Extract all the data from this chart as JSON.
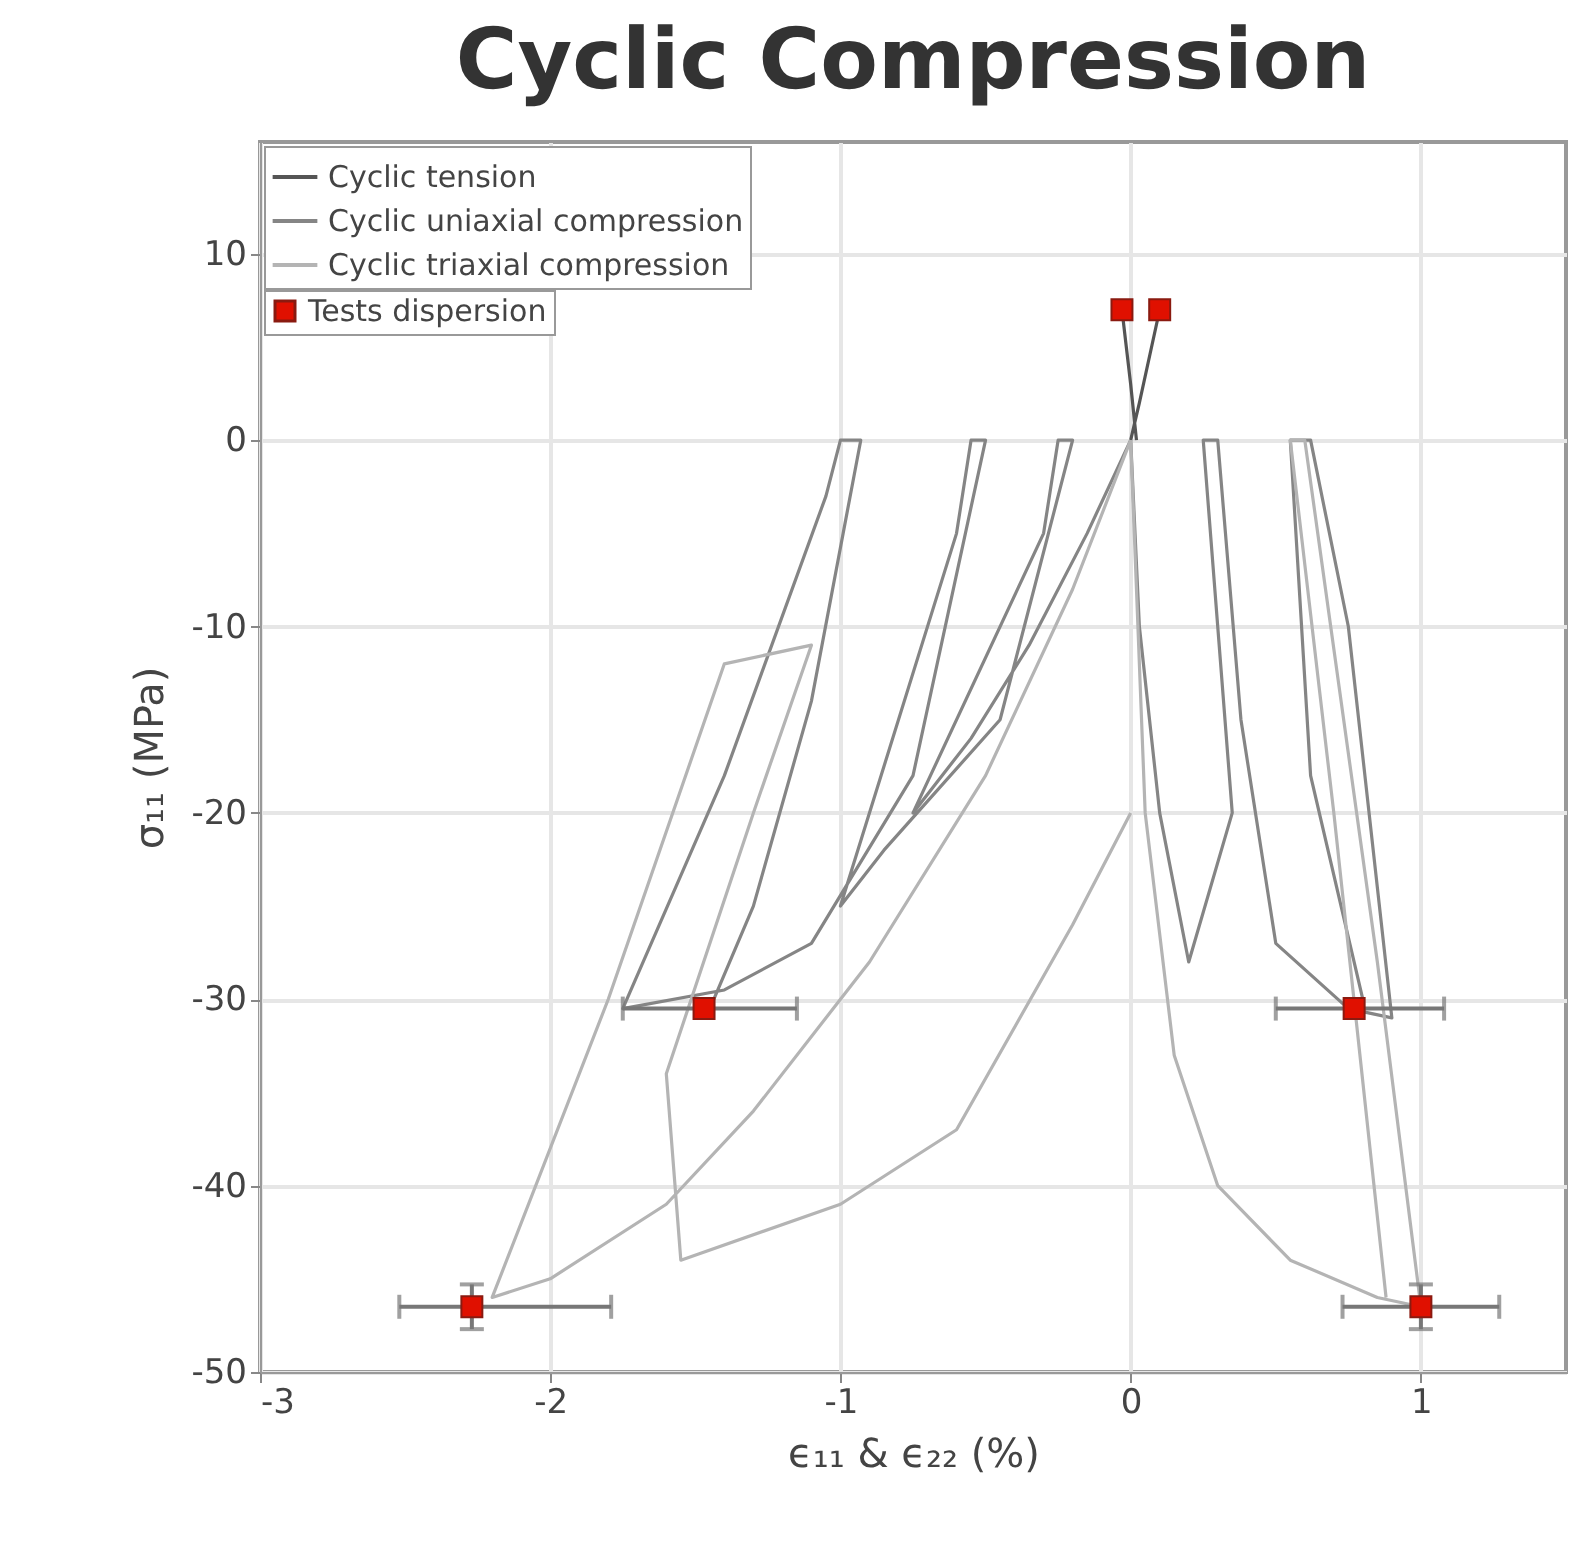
{
  "chart_data": {
    "type": "line",
    "title": "Cyclic Compression",
    "xlabel": "ϵ₁₁ & ϵ₂₂ (%)",
    "ylabel": "σ₁₁ (MPa)",
    "xlim": [
      -3,
      1.5
    ],
    "ylim": [
      -50,
      16
    ],
    "xticks": [
      -3,
      -2,
      -1,
      0,
      1
    ],
    "yticks": [
      -50,
      -40,
      -30,
      -20,
      -10,
      0,
      10
    ],
    "grid": true,
    "legend": "top left",
    "series": [
      {
        "name": "Cyclic tension",
        "color": "#555555",
        "x": [
          -0.03,
          0.0,
          0.02,
          null,
          0.1,
          0.03,
          0.0
        ],
        "values": [
          7,
          3,
          0,
          null,
          7,
          2,
          0
        ]
      },
      {
        "name": "Cyclic uniaxial compression",
        "color": "#858585",
        "x": [
          0,
          -0.15,
          -0.35,
          -0.55,
          -0.75,
          -0.3,
          -0.25,
          -0.2,
          -0.45,
          -0.85,
          -1.0,
          -0.6,
          -0.55,
          -0.5,
          -0.75,
          -1.1,
          -1.4,
          -1.75,
          -1.4,
          -1.05,
          -1.0,
          -0.93,
          -1.1,
          -1.3,
          -1.45,
          null,
          0,
          0.03,
          0.1,
          0.2,
          0.35,
          0.25,
          0.3,
          0.38,
          0.5,
          0.75,
          0.9,
          0.75,
          0.62,
          0.55,
          0.62,
          0.8
        ],
        "values": [
          0,
          -5,
          -11,
          -16,
          -20,
          -5,
          0,
          0,
          -15,
          -22,
          -25,
          -5,
          0,
          0,
          -18,
          -27,
          -29.5,
          -30.5,
          -18,
          -3,
          0,
          0,
          -14,
          -25,
          -30.5,
          null,
          0,
          -10,
          -20,
          -28,
          -20,
          0,
          0,
          -15,
          -27,
          -30.5,
          -31,
          -10,
          0,
          0,
          -18,
          -30
        ]
      },
      {
        "name": "Cyclic triaxial compression",
        "color": "#b4b4b4",
        "x": [
          0,
          -0.2,
          -0.5,
          -0.9,
          -1.3,
          -1.6,
          -2.0,
          -2.2,
          -1.8,
          -1.4,
          -1.1,
          -1.3,
          -1.6,
          -1.55,
          -1.0,
          -0.6,
          -0.2,
          0,
          null,
          0,
          0.05,
          0.15,
          0.3,
          0.55,
          0.85,
          1.0,
          0.85,
          0.6,
          0.55,
          0.7,
          0.88
        ],
        "values": [
          0,
          -8,
          -18,
          -28,
          -36,
          -41,
          -45,
          -46,
          -30,
          -12,
          -11,
          -20,
          -34,
          -44,
          -41,
          -37,
          -26,
          -20,
          null,
          0,
          -20,
          -33,
          -40,
          -44,
          -46,
          -46.5,
          -28,
          0,
          0,
          -20,
          -46
        ]
      },
      {
        "name": "Tests dispersion",
        "type": "scatter",
        "marker": "square",
        "color": "#e01000",
        "x": [
          -0.03,
          0.1,
          -1.47,
          0.77,
          -2.27,
          1.0
        ],
        "values": [
          7,
          7,
          -30.5,
          -30.5,
          -46.5,
          -46.5
        ],
        "xerrors": [
          null,
          null,
          [
            -1.75,
            -1.15
          ],
          [
            0.5,
            1.08
          ],
          [
            -2.52,
            -1.79
          ],
          [
            0.73,
            1.27
          ]
        ],
        "errors": [
          null,
          null,
          null,
          null,
          [
            -47.7,
            -45.3
          ],
          [
            -47.7,
            -45.3
          ]
        ]
      }
    ]
  }
}
